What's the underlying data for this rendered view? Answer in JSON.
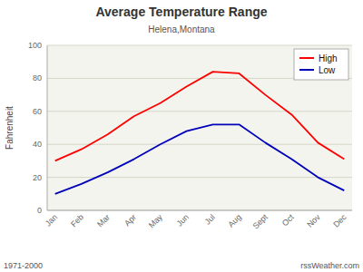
{
  "chart_data": {
    "type": "line",
    "title": "Average Temperature Range",
    "subtitle": "Helena,Montana",
    "y_label": "Fahrenheit",
    "categories": [
      "Jan",
      "Feb",
      "Mar",
      "Apr",
      "May",
      "Jun",
      "Jul",
      "Aug",
      "Sept",
      "Oct",
      "Nov",
      "Dec"
    ],
    "series": [
      {
        "name": "High",
        "color": "#ff0000",
        "values": [
          30,
          37,
          46,
          57,
          65,
          75,
          84,
          83,
          70,
          58,
          41,
          31
        ]
      },
      {
        "name": "Low",
        "color": "#0000bb",
        "values": [
          10,
          16,
          23,
          31,
          40,
          48,
          52,
          52,
          41,
          31,
          20,
          12
        ]
      }
    ],
    "ylim": [
      0,
      100
    ],
    "yticks": [
      0,
      20,
      40,
      60,
      80,
      100
    ],
    "grid": true,
    "legend": "upper right",
    "annotations": [
      "1971-2000",
      "rssWeather.com"
    ]
  }
}
